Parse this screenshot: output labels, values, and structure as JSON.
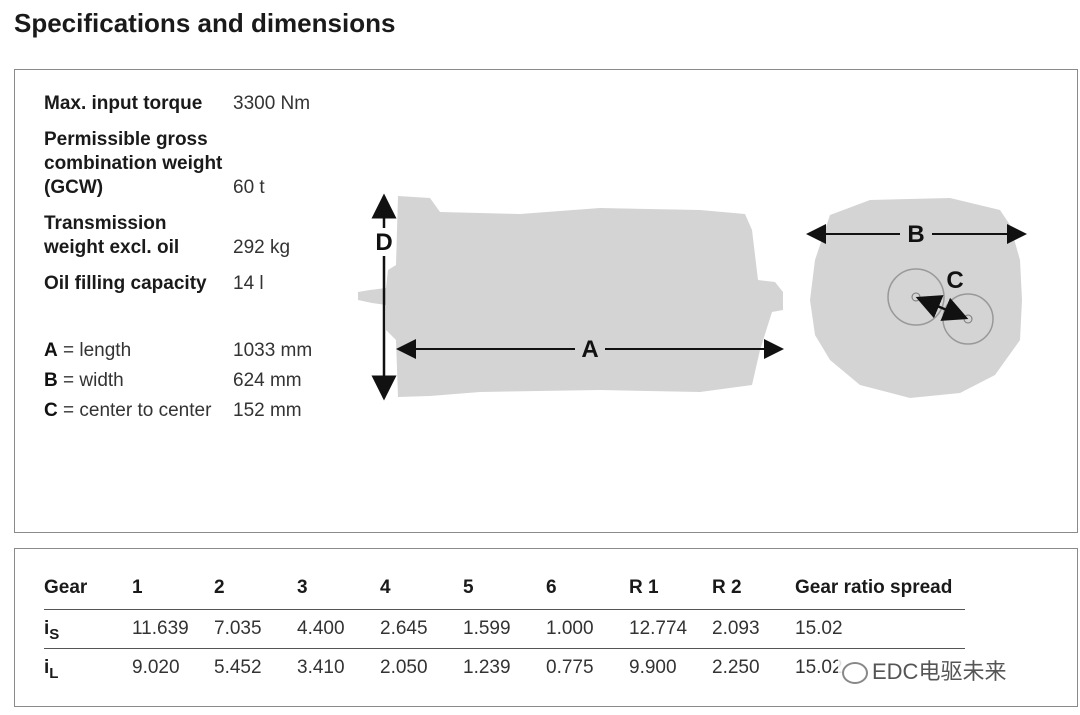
{
  "title": "Specifications and dimensions",
  "specs": [
    {
      "label_lines": [
        "Max. input torque"
      ],
      "value": "3300 Nm"
    },
    {
      "label_lines": [
        "Permissible gross",
        "combination weight",
        "(GCW)"
      ],
      "value": "60 t"
    },
    {
      "label_lines": [
        "Transmission",
        "weight excl. oil"
      ],
      "value": "292 kg"
    },
    {
      "label_lines": [
        "Oil filling capacity"
      ],
      "value": "14 l"
    }
  ],
  "dimensions": [
    {
      "letter": "A",
      "label": "= length",
      "value": "1033 mm"
    },
    {
      "letter": "B",
      "label": "= width",
      "value": "624 mm"
    },
    {
      "letter": "C",
      "label": "= center to center",
      "value": "152 mm"
    }
  ],
  "diagram_labels": {
    "d": "D",
    "a": "A",
    "b": "B",
    "c": "C"
  },
  "table": {
    "header": [
      "Gear",
      "1",
      "2",
      "3",
      "4",
      "5",
      "6",
      "R 1",
      "R 2",
      "Gear ratio spread"
    ],
    "rows": [
      {
        "symbol": "i",
        "subscript": "S",
        "cells": [
          "11.639",
          "7.035",
          "4.400",
          "2.645",
          "1.599",
          "1.000",
          "12.774",
          "2.093",
          "15.02"
        ]
      },
      {
        "symbol": "i",
        "subscript": "L",
        "cells": [
          "9.020",
          "5.452",
          "3.410",
          "2.050",
          "1.239",
          "0.775",
          "9.900",
          "2.250",
          "15.02"
        ]
      }
    ]
  },
  "watermark": "EDC电驱未来"
}
